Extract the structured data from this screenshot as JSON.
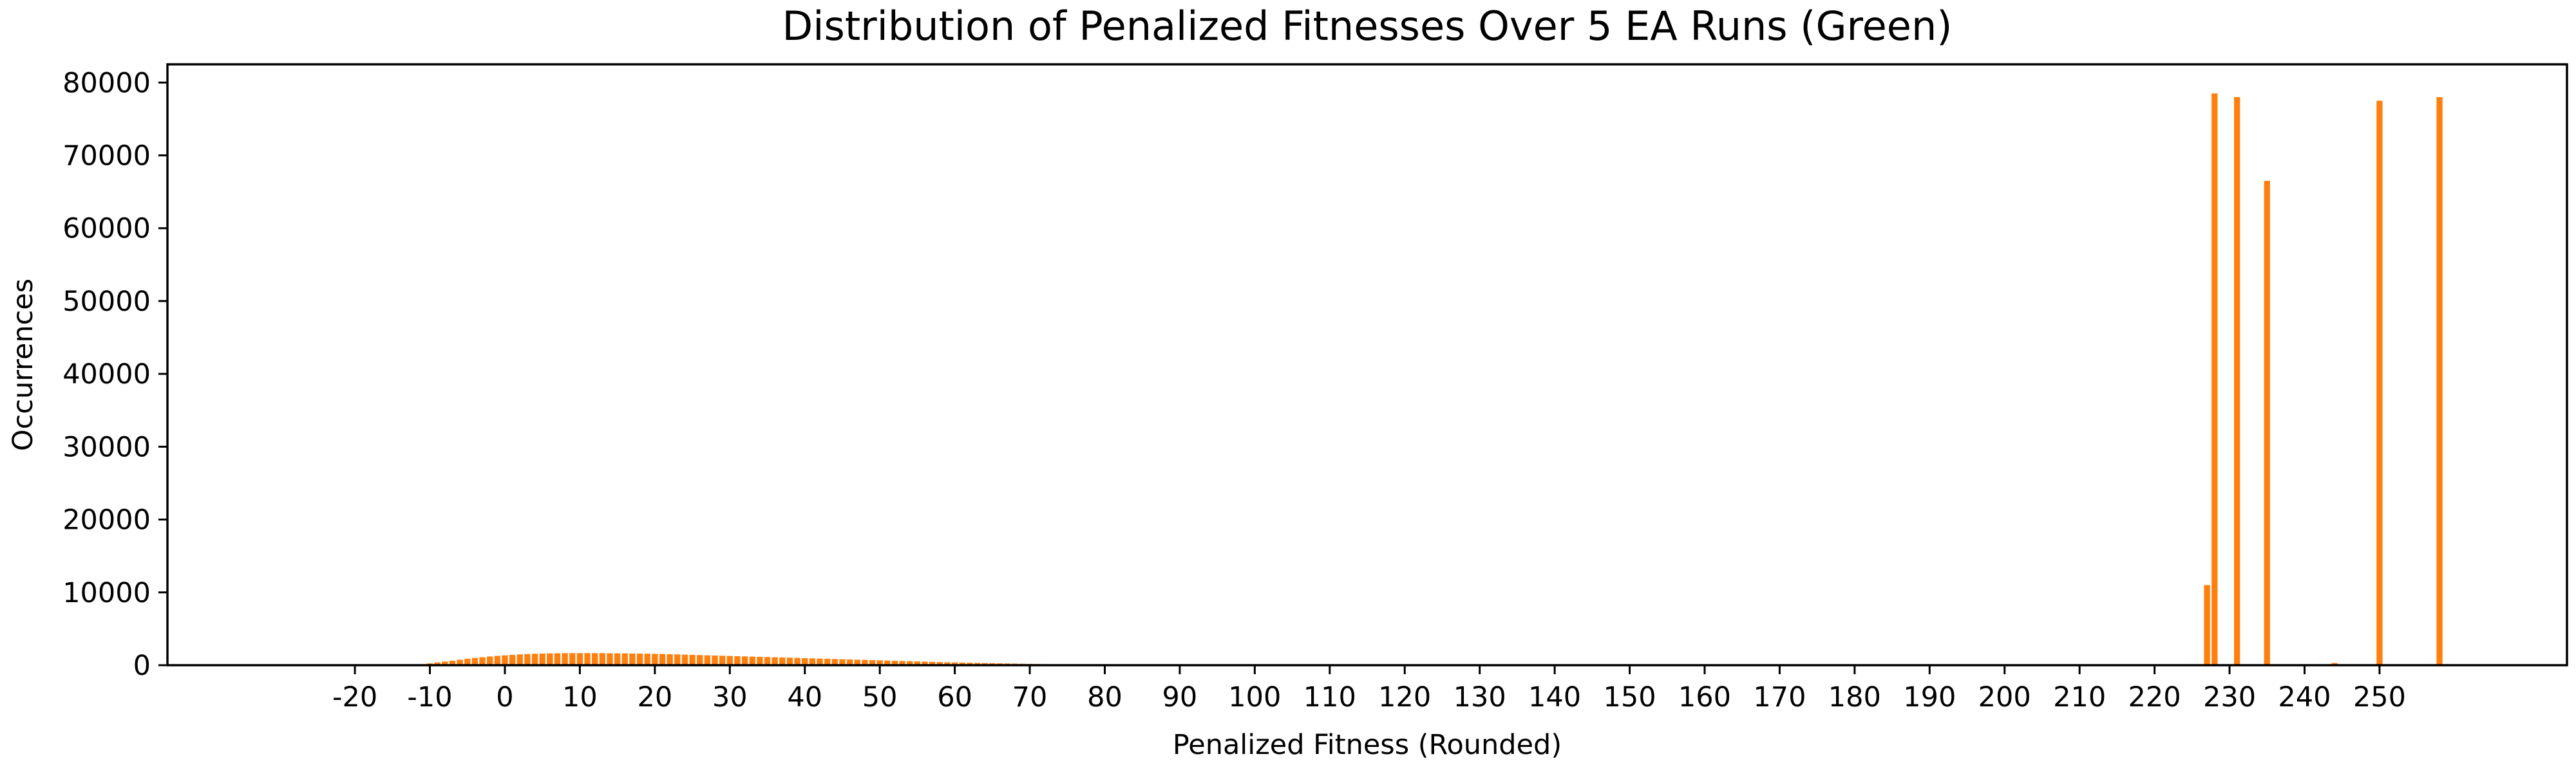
{
  "chart_data": {
    "type": "bar",
    "title": "Distribution of Penalized Fitnesses Over 5 EA Runs (Green)",
    "xlabel": "Penalized Fitness (Rounded)",
    "ylabel": "Occurrences",
    "xlim": [
      -45,
      275
    ],
    "ylim": [
      0,
      82500
    ],
    "x_ticks": [
      -20,
      -10,
      0,
      10,
      20,
      30,
      40,
      50,
      60,
      70,
      80,
      90,
      100,
      110,
      120,
      130,
      140,
      150,
      160,
      170,
      180,
      190,
      200,
      210,
      220,
      230,
      240,
      250
    ],
    "y_ticks": [
      0,
      10000,
      20000,
      30000,
      40000,
      50000,
      60000,
      70000,
      80000
    ],
    "bar_color": "#ff7f0e",
    "grid": false,
    "series": [
      {
        "x": [
          -12,
          -11,
          -10,
          -9,
          -8,
          -7,
          -6,
          -5,
          -4,
          -3,
          -2,
          -1,
          0,
          1,
          2,
          3,
          4,
          5,
          6,
          7,
          8,
          9,
          10,
          11,
          12,
          13,
          14,
          15,
          16,
          17,
          18,
          19,
          20,
          21,
          22,
          23,
          24,
          25,
          26,
          27,
          28,
          29,
          30,
          31,
          32,
          33,
          34,
          35,
          36,
          37,
          38,
          39,
          40,
          41,
          42,
          43,
          44,
          45,
          46,
          47,
          48,
          49,
          50,
          51,
          52,
          53,
          54,
          55,
          56,
          57,
          58,
          59,
          60,
          61,
          62,
          63,
          64,
          65,
          66,
          67,
          68,
          69,
          70,
          71,
          72,
          73,
          74,
          75,
          76,
          77,
          78,
          79,
          80,
          81,
          82,
          83,
          84,
          85,
          227,
          228,
          231,
          235,
          244,
          250,
          258
        ],
        "values": [
          50,
          120,
          250,
          380,
          500,
          620,
          750,
          880,
          1000,
          1100,
          1200,
          1280,
          1350,
          1420,
          1480,
          1530,
          1570,
          1600,
          1620,
          1640,
          1650,
          1660,
          1660,
          1660,
          1650,
          1650,
          1640,
          1630,
          1620,
          1610,
          1600,
          1580,
          1560,
          1540,
          1510,
          1480,
          1450,
          1420,
          1390,
          1360,
          1330,
          1300,
          1270,
          1240,
          1210,
          1180,
          1150,
          1120,
          1090,
          1060,
          1030,
          1000,
          970,
          940,
          910,
          880,
          850,
          820,
          790,
          760,
          730,
          700,
          670,
          640,
          610,
          580,
          550,
          520,
          490,
          460,
          430,
          400,
          380,
          360,
          340,
          320,
          300,
          280,
          260,
          240,
          220,
          200,
          180,
          160,
          140,
          120,
          100,
          90,
          80,
          70,
          60,
          50,
          40,
          30,
          25,
          20,
          15,
          10,
          11000,
          78500,
          78000,
          66500,
          300,
          77500,
          78000
        ]
      }
    ]
  }
}
